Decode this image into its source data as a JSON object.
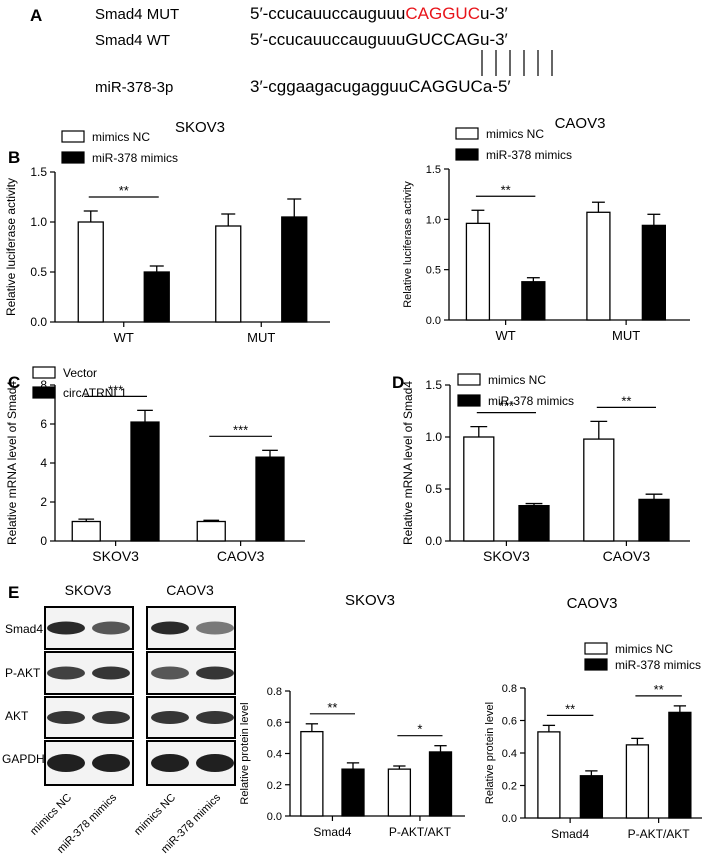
{
  "panel_a": {
    "label": "A",
    "rows": [
      {
        "name": "Smad4 MUT",
        "prefix": "5′-ccucauuccauguuu",
        "core": "CAGGUC",
        "suffix": "u-3′",
        "core_color": "#e8141a"
      },
      {
        "name": "Smad4 WT",
        "prefix": "5′-ccucauuccauguuu",
        "core": "GUCCAG",
        "suffix": "u-3′",
        "core_color": "#000000"
      },
      {
        "name": "miR-378-3p",
        "prefix": "3′-cggaagacugagguu",
        "core": "CAGGUC",
        "suffix": "a-5′",
        "core_color": "#000000"
      }
    ]
  },
  "chart_data": [
    {
      "panel": "B",
      "type": "bar",
      "title": "SKOV3",
      "ylabel": "Relative luciferase activity",
      "ylim": [
        0,
        1.5
      ],
      "yticks": [
        "0.0",
        "0.5",
        "1.0",
        "1.5"
      ],
      "categories": [
        "WT",
        "MUT"
      ],
      "series": [
        {
          "name": "mimics NC",
          "fill": "#ffffff",
          "values": [
            1.0,
            0.96
          ],
          "errors": [
            0.11,
            0.12
          ]
        },
        {
          "name": "miR-378 mimics",
          "fill": "#000000",
          "values": [
            0.5,
            1.05
          ],
          "errors": [
            0.06,
            0.18
          ]
        }
      ],
      "sig": [
        {
          "category": 0,
          "text": "**"
        }
      ]
    },
    {
      "panel": "",
      "type": "bar",
      "title": "CAOV3",
      "ylabel": "Relative luciferase activity",
      "ylim": [
        0,
        1.5
      ],
      "yticks": [
        "0.0",
        "0.5",
        "1.0",
        "1.5"
      ],
      "categories": [
        "WT",
        "MUT"
      ],
      "series": [
        {
          "name": "mimics NC",
          "fill": "#ffffff",
          "values": [
            0.96,
            1.07
          ],
          "errors": [
            0.13,
            0.1
          ]
        },
        {
          "name": "miR-378 mimics",
          "fill": "#000000",
          "values": [
            0.38,
            0.94
          ],
          "errors": [
            0.04,
            0.11
          ]
        }
      ],
      "sig": [
        {
          "category": 0,
          "text": "**"
        }
      ]
    },
    {
      "panel": "C",
      "type": "bar",
      "title": "",
      "ylabel": "Relative mRNA level of Smad4",
      "ylim": [
        0,
        8
      ],
      "yticks": [
        "0",
        "2",
        "4",
        "6",
        "8"
      ],
      "categories": [
        "SKOV3",
        "CAOV3"
      ],
      "series": [
        {
          "name": "Vector",
          "fill": "#ffffff",
          "values": [
            1.0,
            1.0
          ],
          "errors": [
            0.12,
            0.06
          ]
        },
        {
          "name": "circATRNL1",
          "fill": "#000000",
          "values": [
            6.1,
            4.3
          ],
          "errors": [
            0.6,
            0.35
          ]
        }
      ],
      "sig": [
        {
          "category": 0,
          "text": "***"
        },
        {
          "category": 1,
          "text": "***"
        }
      ]
    },
    {
      "panel": "D",
      "type": "bar",
      "title": "",
      "ylabel": "Relative mRNA level of Smad4",
      "ylim": [
        0,
        1.5
      ],
      "yticks": [
        "0.0",
        "0.5",
        "1.0",
        "1.5"
      ],
      "categories": [
        "SKOV3",
        "CAOV3"
      ],
      "series": [
        {
          "name": "mimics NC",
          "fill": "#ffffff",
          "values": [
            1.0,
            0.98
          ],
          "errors": [
            0.1,
            0.17
          ]
        },
        {
          "name": "miR-378 mimics",
          "fill": "#000000",
          "values": [
            0.34,
            0.4
          ],
          "errors": [
            0.02,
            0.05
          ]
        }
      ],
      "sig": [
        {
          "category": 0,
          "text": "***"
        },
        {
          "category": 1,
          "text": "**"
        }
      ]
    },
    {
      "panel": "",
      "type": "bar",
      "title": "SKOV3",
      "ylabel": "Relative protein  level",
      "ylim": [
        0,
        0.8
      ],
      "yticks": [
        "0.0",
        "0.2",
        "0.4",
        "0.6",
        "0.8"
      ],
      "categories": [
        "Smad4",
        "P-AKT/AKT"
      ],
      "series": [
        {
          "name": "mimics NC",
          "fill": "#ffffff",
          "values": [
            0.54,
            0.3
          ],
          "errors": [
            0.05,
            0.02
          ]
        },
        {
          "name": "miR-378 mimics",
          "fill": "#000000",
          "values": [
            0.3,
            0.41
          ],
          "errors": [
            0.04,
            0.04
          ]
        }
      ],
      "sig": [
        {
          "category": 0,
          "text": "**"
        },
        {
          "category": 1,
          "text": "*"
        }
      ]
    },
    {
      "panel": "",
      "type": "bar",
      "title": "CAOV3",
      "ylabel": "Relative protein  level",
      "ylim": [
        0,
        0.8
      ],
      "yticks": [
        "0.0",
        "0.2",
        "0.4",
        "0.6",
        "0.8"
      ],
      "categories": [
        "Smad4",
        "P-AKT/AKT"
      ],
      "series": [
        {
          "name": "mimics NC",
          "fill": "#ffffff",
          "values": [
            0.53,
            0.45
          ],
          "errors": [
            0.04,
            0.04
          ]
        },
        {
          "name": "miR-378 mimics",
          "fill": "#000000",
          "values": [
            0.26,
            0.65
          ],
          "errors": [
            0.03,
            0.04
          ]
        }
      ],
      "sig": [
        {
          "category": 0,
          "text": "**"
        },
        {
          "category": 1,
          "text": "**"
        }
      ]
    }
  ],
  "western_blot": {
    "label": "E",
    "groups": [
      "SKOV3",
      "CAOV3"
    ],
    "proteins": [
      "Smad4",
      "P-AKT",
      "AKT",
      "GAPDH"
    ],
    "lanes": [
      "mimics NC",
      "miR-378 mimics",
      "mimics NC",
      "miR-378 mimics"
    ]
  }
}
